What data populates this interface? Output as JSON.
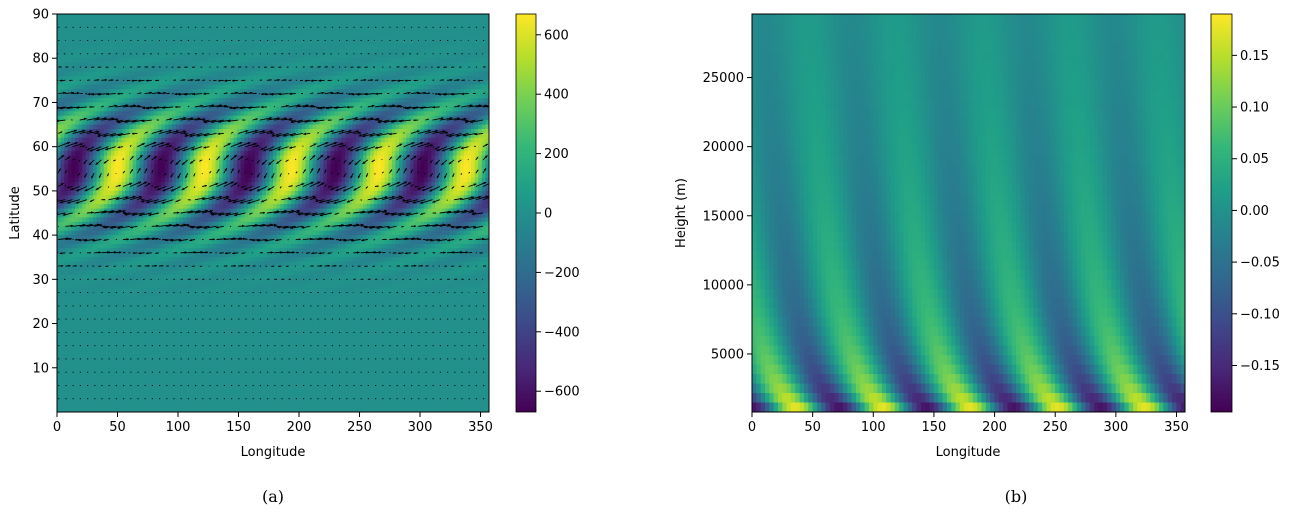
{
  "colors": {
    "colormap": "viridis",
    "viridis_stops": [
      "#440154",
      "#482878",
      "#3e4989",
      "#31688e",
      "#26828e",
      "#1f9e89",
      "#35b779",
      "#6ece58",
      "#b5de2b",
      "#fde725"
    ],
    "arrow_color": "#000000",
    "axis_color": "#000000"
  },
  "chart_data": [
    {
      "type": "heatmap",
      "caption": "(a)",
      "title": "",
      "xlabel": "Longitude",
      "ylabel": "Latitude",
      "xlim": [
        0,
        357
      ],
      "ylim": [
        0,
        90
      ],
      "xticks": [
        0,
        50,
        100,
        150,
        200,
        250,
        300,
        350
      ],
      "yticks": [
        10,
        20,
        30,
        40,
        50,
        60,
        70,
        80,
        90
      ],
      "overlay": "quiver",
      "field": {
        "description_values": "wave pattern with 5 cyclone/anticyclone pairs centered near latitude 55",
        "wavenumber": 5,
        "center_latitude": 55,
        "amplitude": 670,
        "extrema": [
          {
            "lon": 15,
            "lat": 55,
            "value": -670
          },
          {
            "lon": 50,
            "lat": 55,
            "value": 670
          },
          {
            "lon": 87,
            "lat": 55,
            "value": -670
          },
          {
            "lon": 122,
            "lat": 55,
            "value": 670
          },
          {
            "lon": 158,
            "lat": 55,
            "value": -670
          },
          {
            "lon": 194,
            "lat": 55,
            "value": 670
          },
          {
            "lon": 230,
            "lat": 55,
            "value": -670
          },
          {
            "lon": 266,
            "lat": 55,
            "value": 670
          },
          {
            "lon": 302,
            "lat": 55,
            "value": -670
          },
          {
            "lon": 338,
            "lat": 55,
            "value": 670
          }
        ]
      },
      "colorbar": {
        "vmin": -670,
        "vmax": 670,
        "ticks": [
          -600,
          -400,
          -200,
          0,
          200,
          400,
          600
        ],
        "tick_labels": [
          "−600",
          "−400",
          "−200",
          "0",
          "200",
          "400",
          "600"
        ]
      }
    },
    {
      "type": "heatmap",
      "caption": "(b)",
      "title": "",
      "xlabel": "Longitude",
      "ylabel": "Height (m)",
      "xlim": [
        0,
        357
      ],
      "ylim": [
        800,
        29600
      ],
      "xticks": [
        0,
        50,
        100,
        150,
        200,
        250,
        300,
        350
      ],
      "yticks": [
        5000,
        10000,
        15000,
        20000,
        25000
      ],
      "field": {
        "description_values": "5 westward-tilting waves decaying with height",
        "wavenumber": 5,
        "amplitude": 0.19,
        "maxima_at_surface_lon": [
          40,
          110,
          180,
          262,
          333
        ],
        "decay_height_m": 14000
      },
      "colorbar": {
        "vmin": -0.195,
        "vmax": 0.19,
        "ticks": [
          -0.15,
          -0.1,
          -0.05,
          0.0,
          0.05,
          0.1,
          0.15
        ],
        "tick_labels": [
          "−0.15",
          "−0.10",
          "−0.05",
          "0.00",
          "0.05",
          "0.10",
          "0.15"
        ]
      }
    }
  ]
}
